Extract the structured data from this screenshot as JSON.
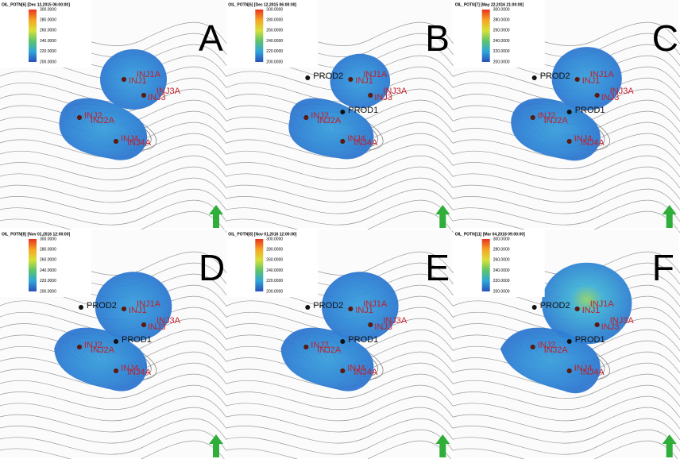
{
  "colorbar_labels": [
    "300.0000",
    "280.0000",
    "260.0000",
    "240.0000",
    "220.0000",
    "200.0000"
  ],
  "panels": [
    {
      "letter": "A",
      "title": "OIL_POTN[6] [Dec 12,2015 06:00:00]",
      "wells": [
        "INJ1A",
        "INJ1",
        "INJ3A",
        "INJ3",
        "INJ2",
        "INJ2A",
        "INJ4",
        "INJ4A"
      ]
    },
    {
      "letter": "B",
      "title": "OIL_POTN[6] [Dec 12,2015 06:00:00]",
      "wells": [
        "INJ1A",
        "INJ1",
        "INJ3A",
        "INJ3",
        "INJ2",
        "INJ2A",
        "INJ4",
        "INJ4A",
        "PROD1",
        "PROD2"
      ]
    },
    {
      "letter": "C",
      "title": "OIL_POTN[7] [May 22,2016 21:00:00]",
      "wells": [
        "INJ1A",
        "INJ1",
        "INJ3A",
        "INJ3",
        "INJ2",
        "INJ2A",
        "INJ4",
        "INJ4A",
        "PROD1",
        "PROD2"
      ]
    },
    {
      "letter": "D",
      "title": "OIL_POTN[8] [Nov 01,2016 12:00:00]",
      "wells": [
        "INJ1A",
        "INJ1",
        "INJ3A",
        "INJ3",
        "INJ2",
        "INJ2A",
        "INJ4",
        "INJ4A",
        "PROD1",
        "PROD2"
      ]
    },
    {
      "letter": "E",
      "title": "OIL_POTN[8] [Nov 01,2016 12:00:00]",
      "wells": [
        "INJ1A",
        "INJ1",
        "INJ3A",
        "INJ3",
        "INJ2",
        "INJ2A",
        "INJ4",
        "INJ4A",
        "PROD1",
        "PROD2"
      ]
    },
    {
      "letter": "F",
      "title": "OIL_POTN[11] [Mar 04,2018 09:00:00]",
      "wells": [
        "INJ1A",
        "INJ1",
        "INJ3A",
        "INJ3",
        "INJ2",
        "INJ2A",
        "INJ4",
        "INJ4A",
        "PROD1",
        "PROD2"
      ]
    }
  ]
}
